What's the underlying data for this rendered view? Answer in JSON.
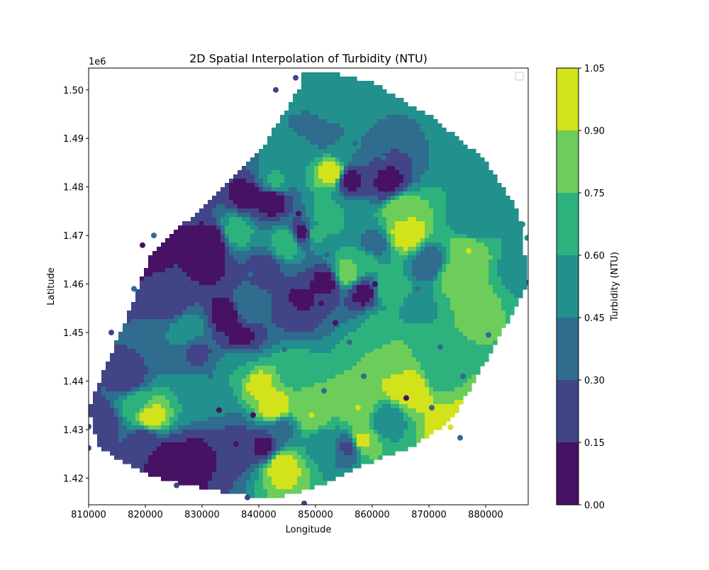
{
  "chart_data": {
    "type": "heatmap",
    "title": "2D Spatial Interpolation of Turbidity (NTU)",
    "xlabel": "Longitude",
    "ylabel": "Latitude",
    "y_offset_label": "1e6",
    "xlim": [
      810000,
      887500
    ],
    "ylim": [
      1414500,
      1504500
    ],
    "x_ticks": [
      810000,
      820000,
      830000,
      840000,
      850000,
      860000,
      870000,
      880000
    ],
    "y_ticks": [
      1420000,
      1430000,
      1440000,
      1450000,
      1460000,
      1470000,
      1480000,
      1490000,
      1500000
    ],
    "y_tick_labels": [
      "1.42",
      "1.43",
      "1.44",
      "1.45",
      "1.46",
      "1.47",
      "1.48",
      "1.49",
      "1.50"
    ],
    "colorbar": {
      "label": "Turbidity (NTU)",
      "levels": [
        0.0,
        0.15,
        0.3,
        0.45,
        0.6,
        0.75,
        0.9,
        1.05
      ],
      "tick_labels": [
        "0.00",
        "0.15",
        "0.30",
        "0.45",
        "0.60",
        "0.75",
        "0.90",
        "1.05"
      ],
      "colors": [
        "#471164",
        "#414487",
        "#2f6c8e",
        "#22908c",
        "#2db27d",
        "#6ccd5a",
        "#d2e21b"
      ]
    },
    "legend": {
      "position": "upper right",
      "entries": []
    },
    "hull": [
      [
        848000,
        1504000
      ],
      [
        852000,
        1504000
      ],
      [
        860000,
        1501500
      ],
      [
        871000,
        1494000
      ],
      [
        880000,
        1485500
      ],
      [
        886000,
        1474500
      ],
      [
        887500,
        1460000
      ],
      [
        880000,
        1444000
      ],
      [
        874000,
        1432000
      ],
      [
        867000,
        1426500
      ],
      [
        858000,
        1422500
      ],
      [
        851000,
        1418500
      ],
      [
        842000,
        1415500
      ],
      [
        830000,
        1418000
      ],
      [
        822000,
        1420000
      ],
      [
        812000,
        1426000
      ],
      [
        810000,
        1434000
      ],
      [
        812500,
        1442000
      ],
      [
        816000,
        1451000
      ],
      [
        821000,
        1466000
      ],
      [
        830000,
        1476000
      ],
      [
        840000,
        1487000
      ],
      [
        847000,
        1500000
      ]
    ],
    "samples": [
      [
        853000,
        1483000,
        1.0
      ],
      [
        844000,
        1422500,
        1.0
      ],
      [
        821000,
        1432500,
        1.0
      ],
      [
        873800,
        1430500,
        1.0
      ],
      [
        842800,
        1434500,
        1.0
      ],
      [
        866000,
        1470200,
        1.0
      ],
      [
        865200,
        1438800,
        1.0
      ],
      [
        858000,
        1427500,
        0.95
      ],
      [
        868000,
        1438700,
        1.0
      ],
      [
        877000,
        1466800,
        0.9
      ],
      [
        840000,
        1439500,
        0.95
      ],
      [
        857500,
        1434500,
        0.9
      ],
      [
        865000,
        1475600,
        0.88
      ],
      [
        849300,
        1433000,
        0.9
      ],
      [
        864000,
        1443800,
        0.85
      ],
      [
        855400,
        1462200,
        0.85
      ],
      [
        878000,
        1455500,
        0.8
      ],
      [
        874000,
        1461500,
        0.82
      ],
      [
        860000,
        1445500,
        0.75
      ],
      [
        845000,
        1468500,
        0.7
      ],
      [
        849500,
        1470500,
        0.7
      ],
      [
        836000,
        1470800,
        0.68
      ],
      [
        863000,
        1459000,
        0.75
      ],
      [
        869000,
        1447000,
        0.72
      ],
      [
        858500,
        1465000,
        0.7
      ],
      [
        852000,
        1474000,
        0.65
      ],
      [
        818400,
        1435500,
        0.7
      ],
      [
        829300,
        1436000,
        0.6
      ],
      [
        846000,
        1442000,
        0.7
      ],
      [
        837000,
        1443800,
        0.6
      ],
      [
        871000,
        1441000,
        0.65
      ],
      [
        861000,
        1452000,
        0.62
      ],
      [
        843000,
        1481000,
        0.62
      ],
      [
        856000,
        1474000,
        0.6
      ],
      [
        848000,
        1488000,
        0.55
      ],
      [
        848000,
        1500000,
        0.5
      ],
      [
        852000,
        1496000,
        0.5
      ],
      [
        855000,
        1488000,
        0.45
      ],
      [
        881000,
        1481000,
        0.55
      ],
      [
        884500,
        1471500,
        0.6
      ],
      [
        886500,
        1463500,
        0.5
      ],
      [
        827600,
        1450500,
        0.55
      ],
      [
        833000,
        1436000,
        0.55
      ],
      [
        838000,
        1455000,
        0.45
      ],
      [
        851000,
        1427500,
        0.55
      ],
      [
        862500,
        1432000,
        0.5
      ],
      [
        868000,
        1455000,
        0.55
      ],
      [
        878000,
        1472000,
        0.45
      ],
      [
        820000,
        1428000,
        0.2
      ],
      [
        834000,
        1429500,
        0.3
      ],
      [
        846000,
        1454000,
        0.3
      ],
      [
        844000,
        1430000,
        0.4
      ],
      [
        831000,
        1464000,
        0.1
      ],
      [
        834500,
        1453500,
        0.05
      ],
      [
        842500,
        1477500,
        0.05
      ],
      [
        848000,
        1470500,
        0.05
      ],
      [
        856000,
        1481500,
        0.1
      ],
      [
        838000,
        1478000,
        0.1
      ],
      [
        826500,
        1422500,
        0.1
      ],
      [
        829600,
        1425000,
        0.1
      ],
      [
        837000,
        1449000,
        0.1
      ],
      [
        858500,
        1458000,
        0.1
      ],
      [
        824000,
        1424000,
        0.05
      ],
      [
        847000,
        1456000,
        0.1
      ],
      [
        814500,
        1463500,
        0.15
      ],
      [
        820000,
        1468000,
        0.05
      ],
      [
        852000,
        1460500,
        0.1
      ],
      [
        863000,
        1480500,
        0.1
      ],
      [
        817000,
        1440000,
        0.2
      ],
      [
        836000,
        1427000,
        0.2
      ],
      [
        856000,
        1426500,
        0.25
      ],
      [
        841000,
        1426500,
        0.1
      ],
      [
        850000,
        1491000,
        0.3
      ],
      [
        832000,
        1469000,
        0.08
      ],
      [
        860000,
        1468000,
        0.35
      ],
      [
        841000,
        1463000,
        0.25
      ],
      [
        812000,
        1432000,
        0.2
      ],
      [
        825000,
        1456000,
        0.25
      ],
      [
        870000,
        1464000,
        0.3
      ],
      [
        829000,
        1446000,
        0.28
      ]
    ],
    "markers": [
      {
        "x": 853000,
        "y": 1483000,
        "v": 1.0
      },
      {
        "x": 844000,
        "y": 1422500,
        "v": 1.0
      },
      {
        "x": 821000,
        "y": 1432500,
        "v": 1.0
      },
      {
        "x": 873800,
        "y": 1430500,
        "v": 1.0
      },
      {
        "x": 842800,
        "y": 1434500,
        "v": 1.0
      },
      {
        "x": 866000,
        "y": 1470200,
        "v": 1.0
      },
      {
        "x": 865200,
        "y": 1438800,
        "v": 1.0
      },
      {
        "x": 858000,
        "y": 1427500,
        "v": 0.95
      },
      {
        "x": 868000,
        "y": 1438700,
        "v": 1.0
      },
      {
        "x": 877000,
        "y": 1466800,
        "v": 0.9
      },
      {
        "x": 840000,
        "y": 1439500,
        "v": 0.95
      },
      {
        "x": 857500,
        "y": 1434500,
        "v": 0.9
      },
      {
        "x": 865000,
        "y": 1475600,
        "v": 0.88
      },
      {
        "x": 849300,
        "y": 1433000,
        "v": 0.9
      },
      {
        "x": 864000,
        "y": 1443800,
        "v": 0.85
      },
      {
        "x": 855400,
        "y": 1462200,
        "v": 0.85
      },
      {
        "x": 878000,
        "y": 1455500,
        "v": 0.8
      },
      {
        "x": 874000,
        "y": 1461500,
        "v": 0.82
      },
      {
        "x": 860000,
        "y": 1445500,
        "v": 0.75
      },
      {
        "x": 845000,
        "y": 1468500,
        "v": 0.7
      },
      {
        "x": 849500,
        "y": 1470500,
        "v": 0.7
      },
      {
        "x": 836000,
        "y": 1470800,
        "v": 0.68
      },
      {
        "x": 818400,
        "y": 1435500,
        "v": 0.7
      },
      {
        "x": 827600,
        "y": 1450500,
        "v": 0.55
      },
      {
        "x": 887300,
        "y": 1469500,
        "v": 0.5
      },
      {
        "x": 886500,
        "y": 1472300,
        "v": 0.5
      },
      {
        "x": 887500,
        "y": 1460300,
        "v": 0.3
      },
      {
        "x": 810000,
        "y": 1426200,
        "v": 0.25
      },
      {
        "x": 810000,
        "y": 1430600,
        "v": 0.25
      },
      {
        "x": 821500,
        "y": 1470000,
        "v": 0.4
      },
      {
        "x": 875500,
        "y": 1428300,
        "v": 0.4
      },
      {
        "x": 846500,
        "y": 1502500,
        "v": 0.25
      },
      {
        "x": 843000,
        "y": 1500000,
        "v": 0.2
      },
      {
        "x": 838000,
        "y": 1416000,
        "v": 0.25
      },
      {
        "x": 848000,
        "y": 1414800,
        "v": 0.2
      },
      {
        "x": 825500,
        "y": 1418500,
        "v": 0.2
      },
      {
        "x": 819500,
        "y": 1468000,
        "v": 0.05
      },
      {
        "x": 848000,
        "y": 1471000,
        "v": 0.05
      },
      {
        "x": 834500,
        "y": 1453500,
        "v": 0.05
      },
      {
        "x": 836000,
        "y": 1427000,
        "v": 0.05
      },
      {
        "x": 841000,
        "y": 1426500,
        "v": 0.05
      },
      {
        "x": 824000,
        "y": 1421500,
        "v": 0.05
      },
      {
        "x": 829600,
        "y": 1424800,
        "v": 0.08
      },
      {
        "x": 826000,
        "y": 1425300,
        "v": 0.08
      },
      {
        "x": 833000,
        "y": 1434000,
        "v": 0.05
      },
      {
        "x": 851000,
        "y": 1456000,
        "v": 0.05
      },
      {
        "x": 853500,
        "y": 1452000,
        "v": 0.05
      },
      {
        "x": 839000,
        "y": 1433000,
        "v": 0.05
      },
      {
        "x": 847000,
        "y": 1474500,
        "v": 0.08
      },
      {
        "x": 860500,
        "y": 1460000,
        "v": 0.05
      },
      {
        "x": 866000,
        "y": 1436500,
        "v": 0.1
      },
      {
        "x": 862500,
        "y": 1479500,
        "v": 0.1
      },
      {
        "x": 830000,
        "y": 1466000,
        "v": 0.1
      },
      {
        "x": 846000,
        "y": 1458500,
        "v": 0.1
      },
      {
        "x": 868000,
        "y": 1459000,
        "v": 0.35
      },
      {
        "x": 872000,
        "y": 1447000,
        "v": 0.35
      },
      {
        "x": 856000,
        "y": 1448000,
        "v": 0.35
      },
      {
        "x": 850000,
        "y": 1494000,
        "v": 0.35
      },
      {
        "x": 857000,
        "y": 1489000,
        "v": 0.3
      },
      {
        "x": 862000,
        "y": 1486000,
        "v": 0.3
      },
      {
        "x": 838500,
        "y": 1462000,
        "v": 0.3
      },
      {
        "x": 826000,
        "y": 1442000,
        "v": 0.3
      },
      {
        "x": 814000,
        "y": 1450000,
        "v": 0.25
      },
      {
        "x": 831500,
        "y": 1441000,
        "v": 0.3
      },
      {
        "x": 818000,
        "y": 1459000,
        "v": 0.3
      },
      {
        "x": 851500,
        "y": 1438000,
        "v": 0.35
      },
      {
        "x": 858500,
        "y": 1441000,
        "v": 0.35
      },
      {
        "x": 844500,
        "y": 1446500,
        "v": 0.4
      },
      {
        "x": 870500,
        "y": 1434500,
        "v": 0.35
      },
      {
        "x": 876000,
        "y": 1441000,
        "v": 0.3
      },
      {
        "x": 880500,
        "y": 1449500,
        "v": 0.3
      },
      {
        "x": 852000,
        "y": 1466000,
        "v": 0.35
      }
    ]
  }
}
